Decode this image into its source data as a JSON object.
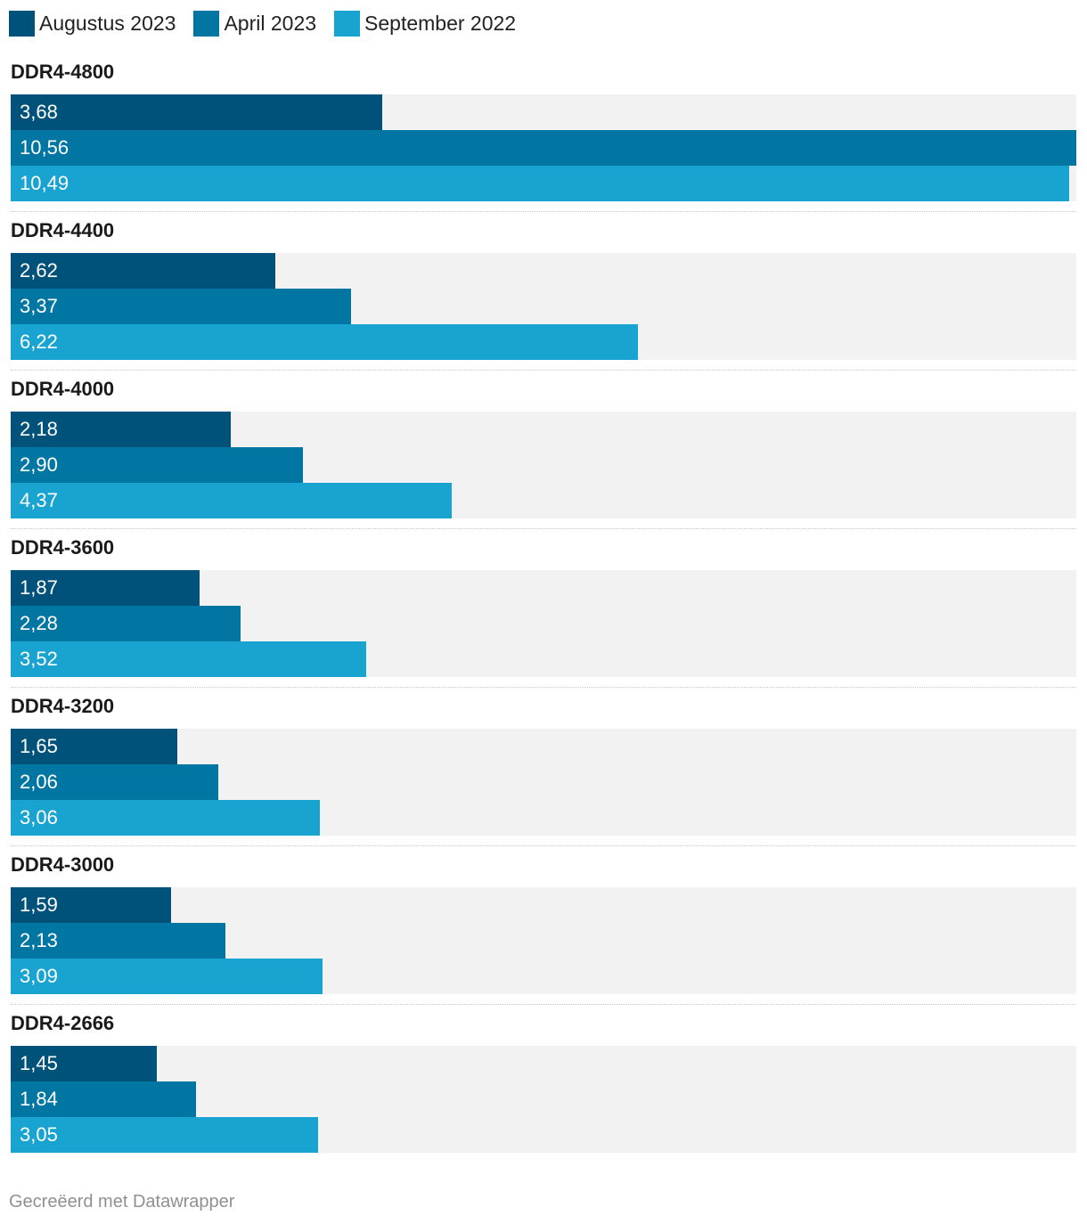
{
  "chart_data": {
    "type": "bar",
    "orientation": "horizontal",
    "xlim": [
      0,
      10.56
    ],
    "grid": false,
    "legend_position": "top-left",
    "categories": [
      "DDR4-4800",
      "DDR4-4400",
      "DDR4-4000",
      "DDR4-3600",
      "DDR4-3200",
      "DDR4-3000",
      "DDR4-2666"
    ],
    "series": [
      {
        "name": "Augustus 2023",
        "color": "#01527b",
        "values": [
          3.68,
          2.62,
          2.18,
          1.87,
          1.65,
          1.59,
          1.45
        ],
        "labels": [
          "3,68",
          "2,62",
          "2,18",
          "1,87",
          "1,65",
          "1,59",
          "1,45"
        ]
      },
      {
        "name": "April 2023",
        "color": "#0176a3",
        "values": [
          10.56,
          3.37,
          2.9,
          2.28,
          2.06,
          2.13,
          1.84
        ],
        "labels": [
          "10,56",
          "3,37",
          "2,90",
          "2,28",
          "2,06",
          "2,13",
          "1,84"
        ]
      },
      {
        "name": "September 2022",
        "color": "#18a3d1",
        "values": [
          10.49,
          6.22,
          4.37,
          3.52,
          3.06,
          3.09,
          3.05
        ],
        "labels": [
          "10,49",
          "6,22",
          "4,37",
          "3,52",
          "3,06",
          "3,09",
          "3,05"
        ]
      }
    ]
  },
  "footer": "Gecreëerd met Datawrapper"
}
